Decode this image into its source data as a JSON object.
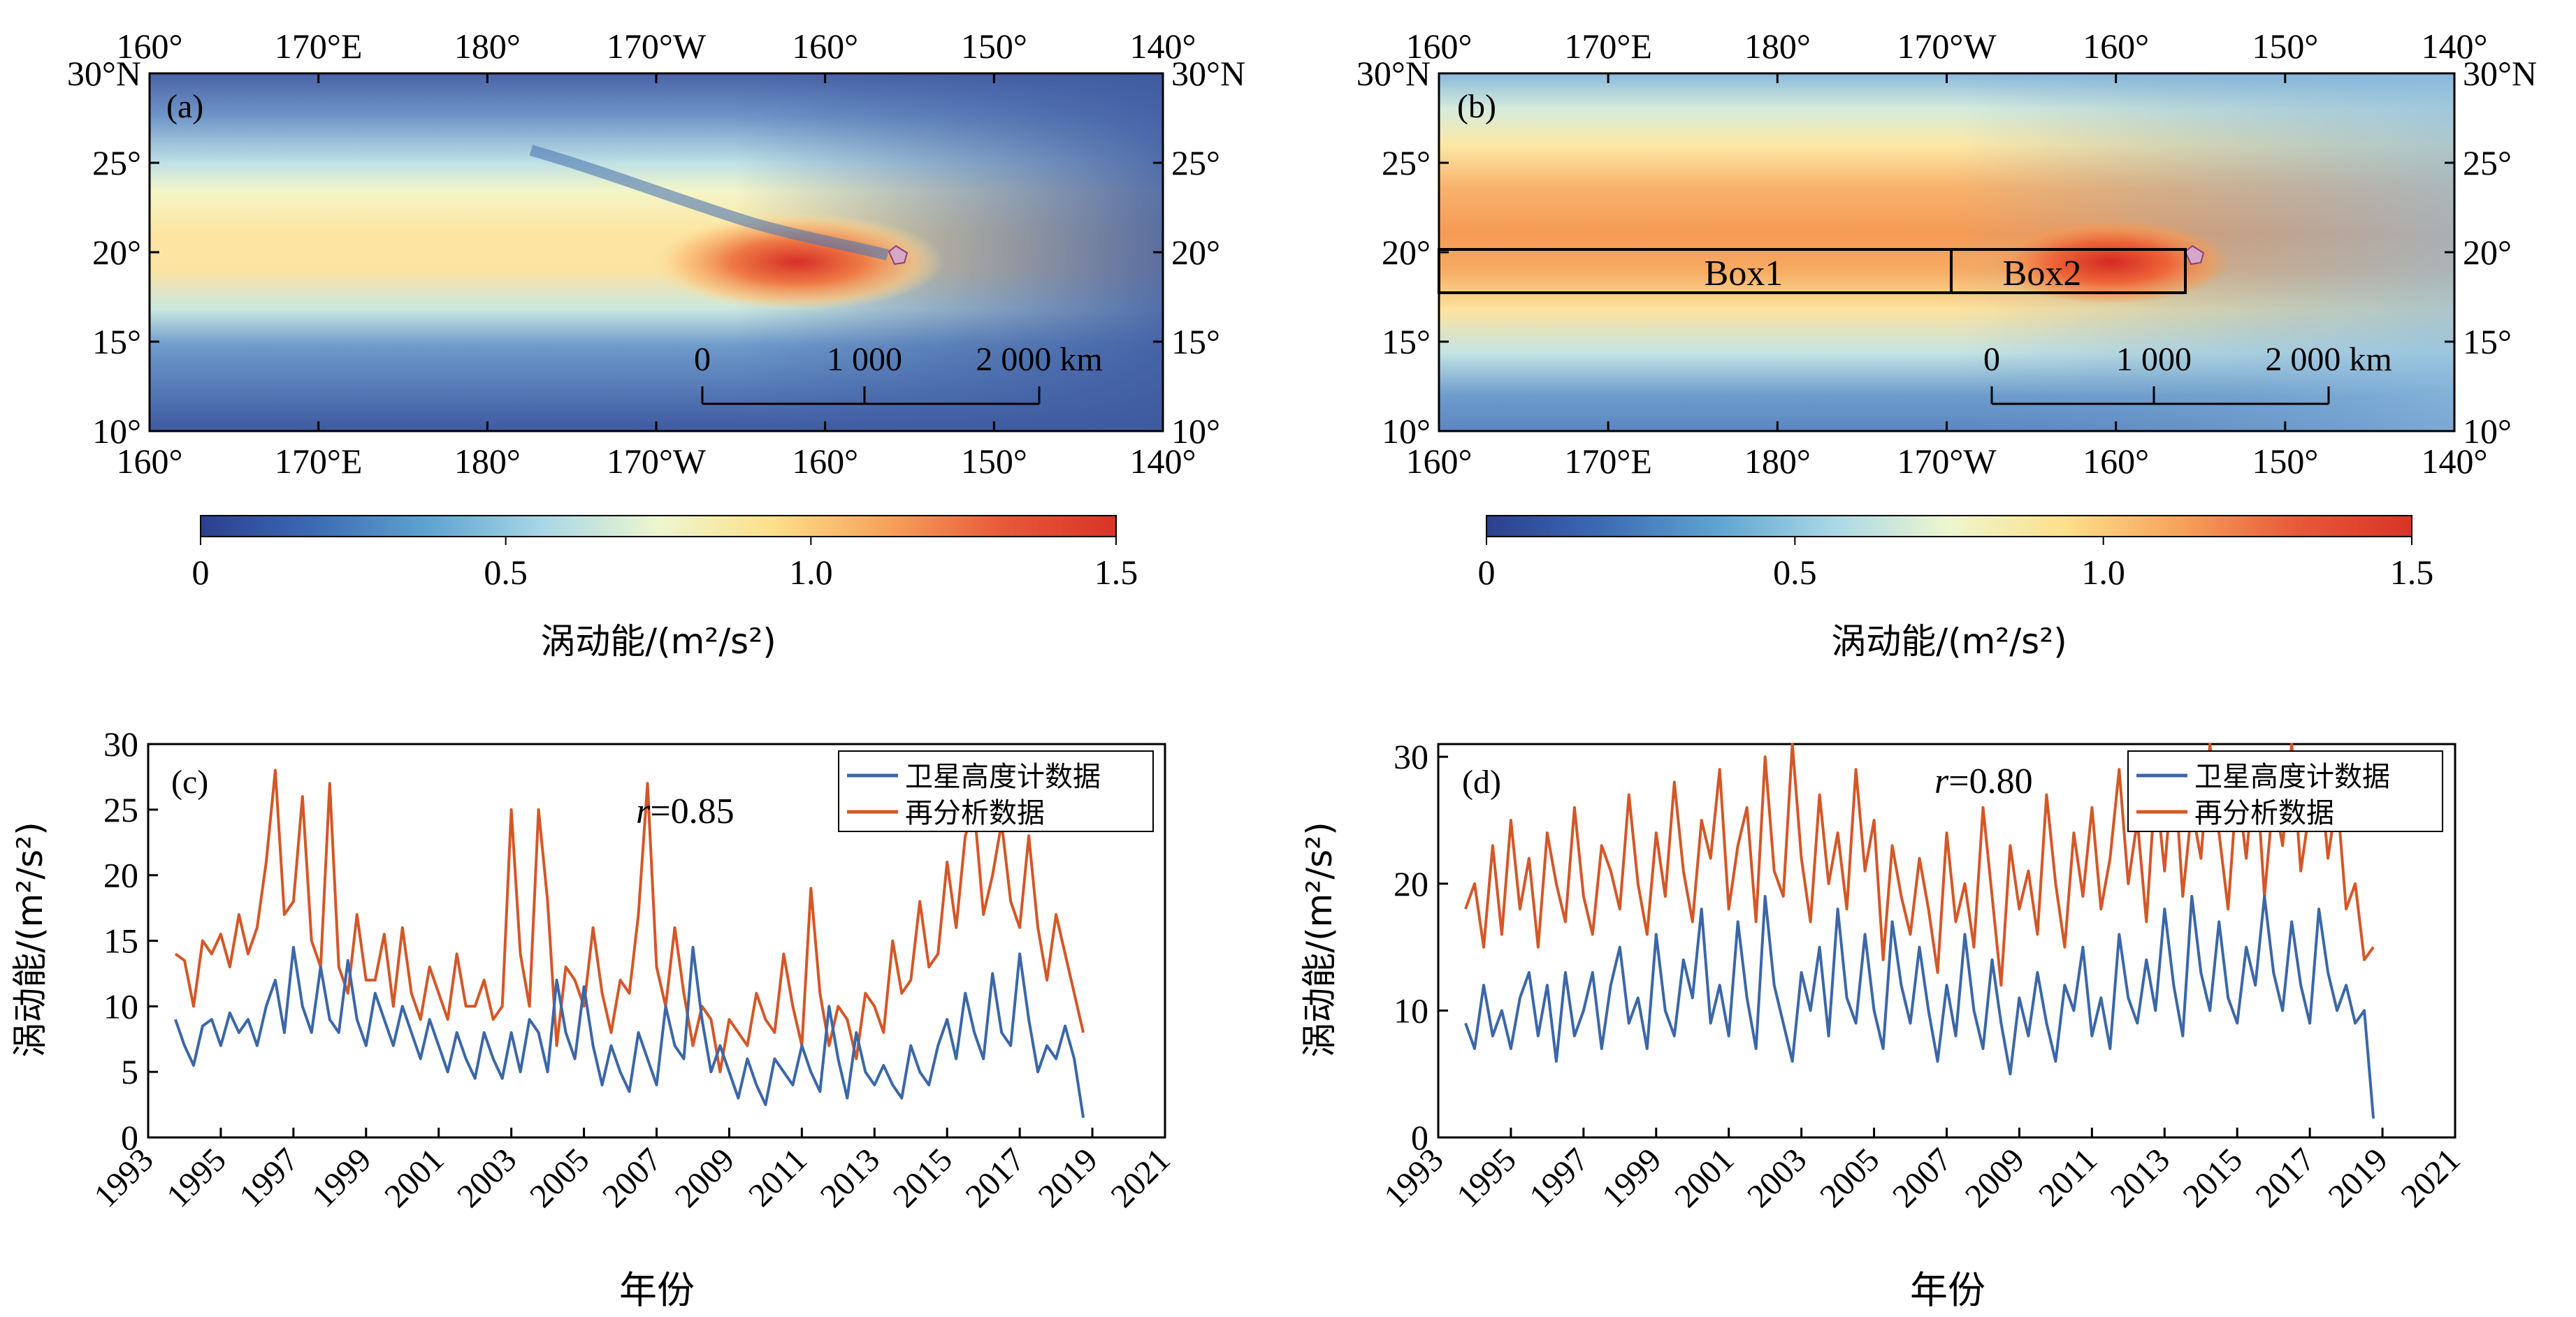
{
  "panels": {
    "a": {
      "label": "(a)"
    },
    "b": {
      "label": "(b)",
      "boxes": [
        "Box1",
        "Box2"
      ]
    },
    "c": {
      "label": "(c)",
      "r_text": "=0.85",
      "r_italic": "r"
    },
    "d": {
      "label": "(d)",
      "r_text": "=0.80",
      "r_italic": "r"
    }
  },
  "maps": {
    "lon_ticks": [
      "160°",
      "170°E",
      "180°",
      "170°W",
      "160°",
      "150°",
      "140°"
    ],
    "lat_ticks": [
      "30°N",
      "25°",
      "20°",
      "15°",
      "10°"
    ],
    "scale_bar": {
      "ticks": [
        "0",
        "1 000",
        "2 000 km"
      ]
    },
    "colorbar": {
      "ticks": [
        "0",
        "0.5",
        "1.0",
        "1.5"
      ],
      "label": "涡动能/(m²/s²)",
      "colors": [
        "#2b3f8f",
        "#3c6bb3",
        "#5fa4d1",
        "#a9d8e6",
        "#eef6cf",
        "#fde08a",
        "#f7a25a",
        "#e8593a",
        "#d93326"
      ]
    }
  },
  "chart_data": [
    {
      "type": "line",
      "panel": "c",
      "xlabel": "年份",
      "ylabel": "涡动能/(m²/s²)",
      "ylim": [
        0,
        30
      ],
      "yticks": [
        0,
        5,
        10,
        15,
        20,
        25,
        30
      ],
      "xlim": [
        1993,
        2021
      ],
      "xticks": [
        "1993",
        "1995",
        "1997",
        "1999",
        "2001",
        "2003",
        "2005",
        "2007",
        "2009",
        "2011",
        "2013",
        "2015",
        "2017",
        "2019",
        "2021"
      ],
      "x_start": 1993.75,
      "x_step": 0.25,
      "legend_location": "top-right",
      "series": [
        {
          "name": "卫星高度计数据",
          "color": "#3b67a8",
          "values": [
            9,
            7,
            5.5,
            8.5,
            9,
            7,
            9.5,
            8,
            9,
            7,
            10,
            12,
            8,
            14.5,
            10,
            8,
            13,
            9,
            8,
            13.5,
            9,
            7,
            11,
            9,
            7,
            10,
            8,
            6,
            9,
            7,
            5,
            8,
            6,
            4.5,
            8,
            6,
            4.5,
            8,
            5,
            9,
            8,
            5,
            12,
            8,
            6,
            11.5,
            7,
            4,
            7,
            5,
            3.5,
            8,
            6,
            4,
            10,
            7,
            6,
            14.5,
            9,
            5,
            7,
            5,
            3,
            6,
            4,
            2.5,
            6,
            5,
            4,
            7,
            5,
            3.5,
            10,
            6,
            3,
            8,
            5,
            4,
            5.5,
            4,
            3,
            7,
            5,
            4,
            7,
            9,
            6,
            11,
            8,
            6,
            12.5,
            8,
            7,
            14,
            9,
            5,
            7,
            6,
            8.5,
            6,
            1.5
          ]
        },
        {
          "name": "再分析数据",
          "color": "#d45727",
          "values": [
            14,
            13.5,
            10,
            15,
            14,
            15.5,
            13,
            17,
            14,
            16,
            21,
            28,
            17,
            18,
            26,
            15,
            13,
            27,
            13,
            11,
            17,
            12,
            12,
            15.5,
            10,
            16,
            11,
            9,
            13,
            11,
            9,
            14,
            10,
            10,
            12,
            9,
            10,
            25,
            14,
            10,
            25,
            18,
            7,
            13,
            12,
            10,
            16,
            11,
            8,
            12,
            11,
            17,
            27,
            13,
            10,
            16,
            11,
            7,
            10,
            9,
            5,
            9,
            8,
            7,
            11,
            9,
            8,
            14,
            10,
            7,
            19,
            11,
            7,
            10,
            9,
            6,
            11,
            10,
            8,
            15,
            11,
            12,
            18,
            13,
            14,
            21,
            16,
            23,
            25,
            17,
            20,
            24,
            18,
            16,
            23,
            16,
            12,
            17,
            14,
            11,
            8
          ]
        }
      ]
    },
    {
      "type": "line",
      "panel": "d",
      "xlabel": "年份",
      "ylabel": "涡动能/(m²/s²)",
      "ylim": [
        0,
        31
      ],
      "yticks": [
        0,
        10,
        20,
        30
      ],
      "xlim": [
        1993,
        2021
      ],
      "xticks": [
        "1993",
        "1995",
        "1997",
        "1999",
        "2001",
        "2003",
        "2005",
        "2007",
        "2009",
        "2011",
        "2013",
        "2015",
        "2017",
        "2019",
        "2021"
      ],
      "x_start": 1993.75,
      "x_step": 0.25,
      "legend_location": "top-right",
      "series": [
        {
          "name": "卫星高度计数据",
          "color": "#3b67a8",
          "values": [
            9,
            7,
            12,
            8,
            10,
            7,
            11,
            13,
            8,
            12,
            6,
            13,
            8,
            10,
            13,
            7,
            12,
            15,
            9,
            11,
            7,
            16,
            10,
            8,
            14,
            11,
            18,
            9,
            12,
            8,
            17,
            11,
            7,
            19,
            12,
            9,
            6,
            13,
            10,
            15,
            8,
            18,
            11,
            9,
            16,
            10,
            7,
            17,
            12,
            9,
            15,
            10,
            6,
            12,
            8,
            16,
            10,
            7,
            14,
            9,
            5,
            11,
            8,
            13,
            9,
            6,
            12,
            10,
            15,
            8,
            11,
            7,
            16,
            11,
            9,
            14,
            10,
            18,
            12,
            8,
            19,
            13,
            10,
            17,
            11,
            9,
            15,
            12,
            19,
            13,
            10,
            17,
            12,
            9,
            18,
            13,
            10,
            12,
            9,
            10,
            1.5
          ]
        },
        {
          "name": "再分析数据",
          "color": "#d45727",
          "values": [
            18,
            20,
            15,
            23,
            16,
            25,
            18,
            22,
            15,
            24,
            20,
            17,
            26,
            19,
            16,
            23,
            21,
            18,
            27,
            20,
            16,
            24,
            19,
            28,
            21,
            17,
            25,
            22,
            29,
            18,
            23,
            26,
            17,
            30,
            21,
            19,
            31,
            22,
            17,
            27,
            20,
            24,
            18,
            29,
            21,
            25,
            14,
            23,
            19,
            16,
            22,
            18,
            13,
            24,
            17,
            20,
            15,
            26,
            19,
            12,
            23,
            18,
            21,
            16,
            27,
            20,
            15,
            24,
            19,
            26,
            18,
            22,
            29,
            20,
            25,
            17,
            28,
            21,
            30,
            19,
            26,
            22,
            31,
            24,
            18,
            28,
            22,
            30,
            19,
            27,
            23,
            31,
            21,
            26,
            30,
            22,
            27,
            18,
            20,
            14,
            15
          ]
        }
      ]
    }
  ]
}
